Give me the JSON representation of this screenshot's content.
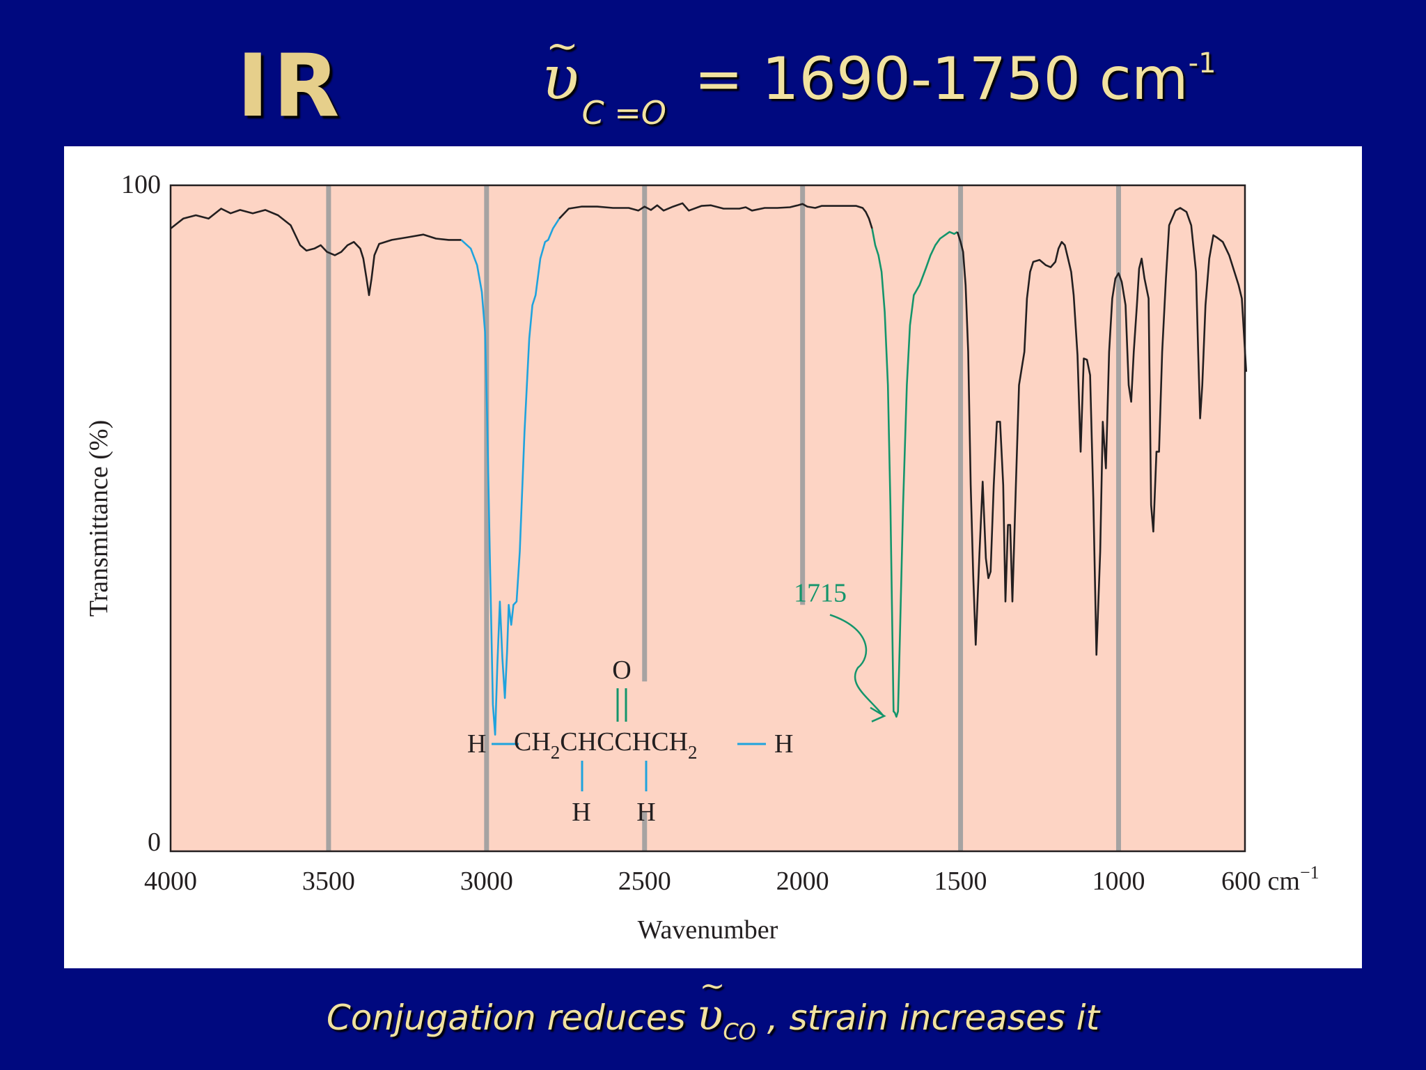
{
  "slide": {
    "title": "IR",
    "formula_symbol": "υ",
    "formula_tilde": "~",
    "formula_subscript": "C =O",
    "formula_text": "= 1690-1750 cm",
    "formula_superscript": "-1",
    "footer_pre": "Conjugation reduces",
    "footer_symbol": "υ",
    "footer_tilde": "~",
    "footer_subscript": "CO",
    "footer_post": ", strain increases it"
  },
  "colors": {
    "background": "#00097f",
    "title": "#e6cf8b",
    "plot_fill": "#fdd4c4",
    "gridline": "#a6a3a2",
    "trace": "#231f20",
    "ch_stretch": "#1fa3dd",
    "carbonyl": "#14956b"
  },
  "chart_data": {
    "type": "line",
    "ylabel": "Transmittance (%)",
    "xlabel": "Wavenumber",
    "x_axis": "wavenumber (cm⁻¹), decreasing left to right",
    "xlim": [
      4000,
      600
    ],
    "ylim": [
      0,
      100
    ],
    "y_ticks": [
      "100",
      "0"
    ],
    "x_ticks": [
      {
        "v": 4000,
        "label": "4000"
      },
      {
        "v": 3500,
        "label": "3500"
      },
      {
        "v": 3000,
        "label": "3000"
      },
      {
        "v": 2500,
        "label": "2500"
      },
      {
        "v": 2000,
        "label": "2000"
      },
      {
        "v": 1500,
        "label": "1500"
      },
      {
        "v": 1000,
        "label": "1000"
      },
      {
        "v": 600,
        "label": "600 cm"
      }
    ],
    "x_last_sup": "−1",
    "gridlines": [
      3500,
      3000,
      2500,
      2000,
      1500,
      1000
    ],
    "annotation": {
      "label": "1715",
      "x": 1715,
      "y": 20
    },
    "molecule": {
      "o": "O",
      "left_h": "H",
      "chain_a": "CH",
      "sub_a": "2",
      "chain_b": "CHCCHCH",
      "sub_b": "2",
      "right_h": "H",
      "bottom_h1": "H",
      "bottom_h2": "H"
    },
    "series": [
      {
        "color": "black",
        "points": [
          [
            4000,
            93.5
          ],
          [
            3960,
            95
          ],
          [
            3920,
            95.5
          ],
          [
            3880,
            95
          ],
          [
            3840,
            96.5
          ],
          [
            3810,
            95.8
          ],
          [
            3780,
            96.3
          ],
          [
            3740,
            95.8
          ],
          [
            3700,
            96.3
          ],
          [
            3660,
            95.5
          ],
          [
            3620,
            94
          ],
          [
            3590,
            91
          ],
          [
            3570,
            90.2
          ],
          [
            3545,
            90.5
          ],
          [
            3525,
            91
          ],
          [
            3505,
            90
          ],
          [
            3480,
            89.5
          ],
          [
            3460,
            90
          ],
          [
            3440,
            91
          ],
          [
            3420,
            91.5
          ],
          [
            3400,
            90.5
          ],
          [
            3390,
            89
          ],
          [
            3380,
            86
          ],
          [
            3372,
            83.5
          ],
          [
            3364,
            86
          ],
          [
            3355,
            89.5
          ],
          [
            3340,
            91.2
          ],
          [
            3300,
            91.8
          ],
          [
            3250,
            92.2
          ],
          [
            3200,
            92.6
          ],
          [
            3160,
            92
          ],
          [
            3120,
            91.8
          ],
          [
            3080,
            91.8
          ]
        ]
      },
      {
        "color": "blue",
        "points": [
          [
            3080,
            91.8
          ],
          [
            3050,
            90.5
          ],
          [
            3030,
            88
          ],
          [
            3015,
            84
          ],
          [
            3005,
            78
          ],
          [
            2998,
            65
          ],
          [
            2990,
            45
          ],
          [
            2980,
            22
          ],
          [
            2973,
            17.5
          ],
          [
            2966,
            28
          ],
          [
            2958,
            37.5
          ],
          [
            2950,
            29
          ],
          [
            2942,
            23
          ],
          [
            2935,
            30
          ],
          [
            2930,
            37
          ],
          [
            2922,
            34
          ],
          [
            2915,
            37
          ],
          [
            2905,
            37.5
          ],
          [
            2895,
            45
          ],
          [
            2880,
            63
          ],
          [
            2865,
            77
          ],
          [
            2855,
            82
          ],
          [
            2845,
            83.5
          ],
          [
            2830,
            89
          ],
          [
            2815,
            91.5
          ],
          [
            2805,
            91.8
          ],
          [
            2790,
            93.5
          ],
          [
            2770,
            95
          ]
        ]
      },
      {
        "color": "black",
        "points": [
          [
            2770,
            95
          ],
          [
            2740,
            96.5
          ],
          [
            2700,
            96.8
          ],
          [
            2650,
            96.8
          ],
          [
            2600,
            96.6
          ],
          [
            2550,
            96.6
          ],
          [
            2520,
            96.2
          ],
          [
            2500,
            96.8
          ],
          [
            2480,
            96.3
          ],
          [
            2460,
            97
          ],
          [
            2440,
            96.2
          ],
          [
            2410,
            96.8
          ],
          [
            2380,
            97.3
          ],
          [
            2360,
            96.2
          ],
          [
            2320,
            96.9
          ],
          [
            2290,
            97
          ],
          [
            2250,
            96.5
          ],
          [
            2200,
            96.5
          ],
          [
            2180,
            96.7
          ],
          [
            2160,
            96.2
          ],
          [
            2120,
            96.6
          ],
          [
            2080,
            96.6
          ],
          [
            2040,
            96.7
          ],
          [
            2015,
            97
          ],
          [
            2000,
            97.2
          ],
          [
            1985,
            96.8
          ],
          [
            1960,
            96.6
          ],
          [
            1940,
            96.9
          ],
          [
            1900,
            96.9
          ],
          [
            1860,
            96.9
          ],
          [
            1830,
            96.9
          ],
          [
            1810,
            96.6
          ],
          [
            1800,
            96
          ],
          [
            1790,
            95
          ],
          [
            1780,
            93.5
          ]
        ]
      },
      {
        "color": "green",
        "points": [
          [
            1780,
            93.5
          ],
          [
            1770,
            91
          ],
          [
            1760,
            89.5
          ],
          [
            1750,
            87
          ],
          [
            1740,
            81
          ],
          [
            1730,
            70
          ],
          [
            1722,
            52
          ],
          [
            1715,
            30
          ],
          [
            1712,
            21
          ],
          [
            1708,
            20.8
          ],
          [
            1703,
            20.2
          ],
          [
            1698,
            21
          ],
          [
            1692,
            32
          ],
          [
            1682,
            52
          ],
          [
            1670,
            70
          ],
          [
            1660,
            79
          ],
          [
            1648,
            83.5
          ],
          [
            1630,
            85
          ],
          [
            1610,
            87.5
          ],
          [
            1595,
            89.5
          ],
          [
            1580,
            91
          ],
          [
            1565,
            92
          ],
          [
            1550,
            92.5
          ],
          [
            1535,
            93
          ],
          [
            1520,
            92.7
          ],
          [
            1510,
            93
          ]
        ]
      },
      {
        "color": "black",
        "points": [
          [
            1510,
            93
          ],
          [
            1500,
            91.5
          ],
          [
            1492,
            90
          ],
          [
            1484,
            85
          ],
          [
            1476,
            75
          ],
          [
            1468,
            55
          ],
          [
            1460,
            41.5
          ],
          [
            1452,
            31
          ],
          [
            1440,
            45
          ],
          [
            1430,
            55.5
          ],
          [
            1420,
            44
          ],
          [
            1412,
            41
          ],
          [
            1405,
            42
          ],
          [
            1395,
            55
          ],
          [
            1385,
            64.5
          ],
          [
            1375,
            64.5
          ],
          [
            1365,
            55
          ],
          [
            1358,
            37.5
          ],
          [
            1350,
            49
          ],
          [
            1343,
            49
          ],
          [
            1336,
            37.5
          ],
          [
            1325,
            55
          ],
          [
            1315,
            70
          ],
          [
            1305,
            73
          ],
          [
            1298,
            75
          ],
          [
            1290,
            83
          ],
          [
            1280,
            87
          ],
          [
            1270,
            88.5
          ],
          [
            1250,
            88.8
          ],
          [
            1230,
            88
          ],
          [
            1215,
            87.7
          ],
          [
            1200,
            88.5
          ],
          [
            1190,
            90.5
          ],
          [
            1180,
            91.5
          ],
          [
            1170,
            91
          ],
          [
            1160,
            89
          ],
          [
            1150,
            87
          ],
          [
            1142,
            83.5
          ],
          [
            1130,
            74.5
          ],
          [
            1120,
            60
          ],
          [
            1110,
            74
          ],
          [
            1100,
            73.8
          ],
          [
            1090,
            71.5
          ],
          [
            1080,
            53
          ],
          [
            1070,
            29.5
          ],
          [
            1058,
            45
          ],
          [
            1050,
            64.5
          ],
          [
            1040,
            57.5
          ],
          [
            1030,
            75
          ],
          [
            1020,
            83
          ],
          [
            1010,
            86
          ],
          [
            1000,
            86.8
          ],
          [
            990,
            85.5
          ],
          [
            978,
            82
          ],
          [
            968,
            70
          ],
          [
            960,
            67.5
          ],
          [
            952,
            75
          ],
          [
            942,
            82
          ],
          [
            935,
            87.5
          ],
          [
            927,
            89
          ],
          [
            918,
            86
          ],
          [
            905,
            83
          ],
          [
            897,
            52
          ],
          [
            890,
            48
          ],
          [
            880,
            60
          ],
          [
            872,
            60
          ],
          [
            862,
            75
          ],
          [
            850,
            86
          ],
          [
            840,
            94
          ],
          [
            820,
            96.2
          ],
          [
            805,
            96.6
          ],
          [
            785,
            96
          ],
          [
            770,
            94
          ],
          [
            755,
            87
          ],
          [
            748,
            75
          ],
          [
            742,
            65
          ],
          [
            735,
            70
          ],
          [
            725,
            82
          ],
          [
            713,
            89
          ],
          [
            700,
            92.5
          ],
          [
            690,
            92.2
          ],
          [
            670,
            91.5
          ],
          [
            650,
            89.5
          ],
          [
            630,
            86.5
          ],
          [
            620,
            85
          ],
          [
            610,
            83
          ],
          [
            596,
            72
          ]
        ]
      }
    ]
  }
}
